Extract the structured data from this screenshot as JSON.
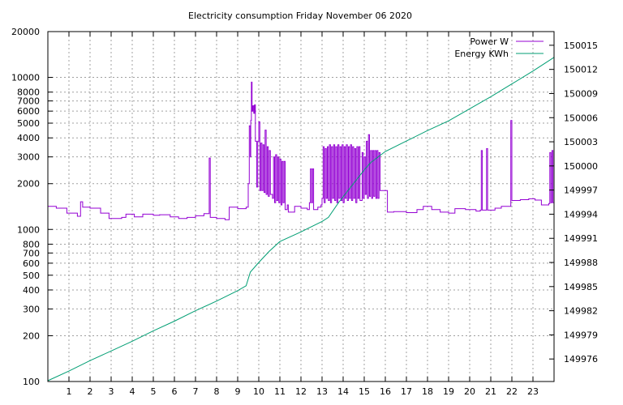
{
  "chart_data": {
    "type": "line",
    "title": "Electricity consumption Friday November 06 2020",
    "x_axis": {
      "range": [
        0,
        24
      ],
      "ticks": [
        1,
        2,
        3,
        4,
        5,
        6,
        7,
        8,
        9,
        10,
        11,
        12,
        13,
        14,
        15,
        16,
        17,
        18,
        19,
        20,
        21,
        22,
        23
      ],
      "grid": true
    },
    "y_axis_left": {
      "scale": "log",
      "range": [
        100,
        20000
      ],
      "ticks": [
        100,
        200,
        300,
        400,
        500,
        600,
        700,
        800,
        1000,
        2000,
        3000,
        4000,
        5000,
        6000,
        7000,
        8000,
        10000,
        20000
      ],
      "grid": true
    },
    "y_axis_right": {
      "scale": "linear",
      "range": [
        149973.2,
        150016.7
      ],
      "ticks": [
        149976,
        149979,
        149982,
        149985,
        149988,
        149991,
        149994,
        149997,
        150000,
        150003,
        150006,
        150009,
        150012,
        150015
      ]
    },
    "legend": {
      "position": "top-right"
    },
    "series": [
      {
        "name": "Power W",
        "axis": "left",
        "color": "#9400d3",
        "step": true,
        "points": [
          [
            0,
            1420
          ],
          [
            0.4,
            1380
          ],
          [
            0.9,
            1280
          ],
          [
            1.4,
            1220
          ],
          [
            1.55,
            1520
          ],
          [
            1.65,
            1400
          ],
          [
            2,
            1380
          ],
          [
            2.5,
            1280
          ],
          [
            2.9,
            1180
          ],
          [
            3.5,
            1200
          ],
          [
            3.7,
            1260
          ],
          [
            4.1,
            1210
          ],
          [
            4.5,
            1260
          ],
          [
            5,
            1240
          ],
          [
            5.3,
            1250
          ],
          [
            5.8,
            1210
          ],
          [
            6.2,
            1180
          ],
          [
            6.6,
            1200
          ],
          [
            7,
            1230
          ],
          [
            7.4,
            1270
          ],
          [
            7.65,
            2950
          ],
          [
            7.7,
            1200
          ],
          [
            8.0,
            1180
          ],
          [
            8.4,
            1160
          ],
          [
            8.6,
            1400
          ],
          [
            9.0,
            1370
          ],
          [
            9.4,
            1400
          ],
          [
            9.5,
            2000
          ],
          [
            9.55,
            4800
          ],
          [
            9.6,
            3000
          ],
          [
            9.62,
            5200
          ],
          [
            9.65,
            9300
          ],
          [
            9.68,
            6000
          ],
          [
            9.72,
            6500
          ],
          [
            9.76,
            5800
          ],
          [
            9.8,
            6600
          ],
          [
            9.84,
            3800
          ],
          [
            9.9,
            1900
          ],
          [
            9.95,
            3800
          ],
          [
            10.0,
            5100
          ],
          [
            10.05,
            1800
          ],
          [
            10.1,
            3700
          ],
          [
            10.15,
            1800
          ],
          [
            10.2,
            3600
          ],
          [
            10.25,
            1750
          ],
          [
            10.3,
            4500
          ],
          [
            10.35,
            1700
          ],
          [
            10.4,
            3500
          ],
          [
            10.45,
            1650
          ],
          [
            10.5,
            3300
          ],
          [
            10.55,
            1700
          ],
          [
            10.65,
            1600
          ],
          [
            10.7,
            3000
          ],
          [
            10.75,
            1500
          ],
          [
            10.8,
            3100
          ],
          [
            10.85,
            1550
          ],
          [
            10.9,
            3000
          ],
          [
            10.95,
            1500
          ],
          [
            11.0,
            2900
          ],
          [
            11.05,
            1450
          ],
          [
            11.1,
            2800
          ],
          [
            11.15,
            1500
          ],
          [
            11.2,
            2800
          ],
          [
            11.25,
            1350
          ],
          [
            11.35,
            1450
          ],
          [
            11.4,
            1300
          ],
          [
            11.7,
            1420
          ],
          [
            12.0,
            1380
          ],
          [
            12.3,
            1350
          ],
          [
            12.4,
            1500
          ],
          [
            12.45,
            2500
          ],
          [
            12.5,
            1500
          ],
          [
            12.55,
            2500
          ],
          [
            12.6,
            1350
          ],
          [
            12.8,
            1400
          ],
          [
            12.95,
            1450
          ],
          [
            13.0,
            1600
          ],
          [
            13.05,
            3500
          ],
          [
            13.1,
            1500
          ],
          [
            13.15,
            3400
          ],
          [
            13.2,
            1600
          ],
          [
            13.25,
            3500
          ],
          [
            13.3,
            1550
          ],
          [
            13.35,
            3600
          ],
          [
            13.4,
            1500
          ],
          [
            13.45,
            3500
          ],
          [
            13.5,
            1600
          ],
          [
            13.55,
            3600
          ],
          [
            13.6,
            1550
          ],
          [
            13.65,
            3500
          ],
          [
            13.7,
            1500
          ],
          [
            13.75,
            3600
          ],
          [
            13.8,
            1600
          ],
          [
            13.85,
            3500
          ],
          [
            13.9,
            1550
          ],
          [
            13.95,
            3600
          ],
          [
            14.0,
            1500
          ],
          [
            14.05,
            3500
          ],
          [
            14.1,
            1600
          ],
          [
            14.15,
            3600
          ],
          [
            14.2,
            1550
          ],
          [
            14.25,
            3500
          ],
          [
            14.3,
            1600
          ],
          [
            14.35,
            3600
          ],
          [
            14.4,
            1550
          ],
          [
            14.45,
            3500
          ],
          [
            14.5,
            1600
          ],
          [
            14.55,
            3400
          ],
          [
            14.6,
            1500
          ],
          [
            14.65,
            3500
          ],
          [
            14.7,
            1600
          ],
          [
            14.75,
            3500
          ],
          [
            14.8,
            1550
          ],
          [
            14.9,
            3200
          ],
          [
            14.95,
            1600
          ],
          [
            15.0,
            3000
          ],
          [
            15.05,
            1700
          ],
          [
            15.1,
            3800
          ],
          [
            15.15,
            1600
          ],
          [
            15.2,
            4200
          ],
          [
            15.25,
            1650
          ],
          [
            15.3,
            3300
          ],
          [
            15.35,
            1600
          ],
          [
            15.4,
            3300
          ],
          [
            15.45,
            1650
          ],
          [
            15.5,
            3300
          ],
          [
            15.55,
            1600
          ],
          [
            15.6,
            3300
          ],
          [
            15.65,
            1600
          ],
          [
            15.7,
            3200
          ],
          [
            15.75,
            1800
          ],
          [
            16.1,
            1300
          ],
          [
            16.4,
            1310
          ],
          [
            17.0,
            1290
          ],
          [
            17.5,
            1350
          ],
          [
            17.8,
            1420
          ],
          [
            18.2,
            1350
          ],
          [
            18.6,
            1300
          ],
          [
            19.0,
            1280
          ],
          [
            19.3,
            1370
          ],
          [
            19.8,
            1350
          ],
          [
            20.3,
            1320
          ],
          [
            20.5,
            1340
          ],
          [
            20.55,
            3300
          ],
          [
            20.6,
            1340
          ],
          [
            20.75,
            1340
          ],
          [
            20.8,
            3400
          ],
          [
            20.85,
            1340
          ],
          [
            21.2,
            1380
          ],
          [
            21.5,
            1420
          ],
          [
            21.9,
            1420
          ],
          [
            21.95,
            5200
          ],
          [
            22.0,
            1550
          ],
          [
            22.4,
            1570
          ],
          [
            22.8,
            1590
          ],
          [
            23.1,
            1560
          ],
          [
            23.4,
            1450
          ],
          [
            23.75,
            1480
          ],
          [
            23.8,
            3200
          ],
          [
            23.85,
            1500
          ],
          [
            23.9,
            3300
          ],
          [
            23.95,
            1500
          ],
          [
            24.0,
            3200
          ]
        ]
      },
      {
        "name": "Energy KWh",
        "axis": "right",
        "color": "#009e73",
        "step": false,
        "points": [
          [
            0,
            149973.3
          ],
          [
            1,
            149974.5
          ],
          [
            2,
            149975.8
          ],
          [
            3,
            149977.0
          ],
          [
            4,
            149978.2
          ],
          [
            5,
            149979.5
          ],
          [
            6,
            149980.7
          ],
          [
            7,
            149982.0
          ],
          [
            8,
            149983.2
          ],
          [
            9,
            149984.5
          ],
          [
            9.4,
            149985.1
          ],
          [
            9.6,
            149986.8
          ],
          [
            10,
            149988.0
          ],
          [
            10.5,
            149989.4
          ],
          [
            11,
            149990.6
          ],
          [
            12,
            149991.8
          ],
          [
            13,
            149993.1
          ],
          [
            13.3,
            149993.6
          ],
          [
            13.8,
            149995.5
          ],
          [
            14.4,
            149997.5
          ],
          [
            15,
            149999.5
          ],
          [
            15.3,
            150000.4
          ],
          [
            16,
            150001.8
          ],
          [
            17,
            150003.1
          ],
          [
            18,
            150004.4
          ],
          [
            19,
            150005.6
          ],
          [
            20,
            150007.1
          ],
          [
            21,
            150008.6
          ],
          [
            22,
            150010.2
          ],
          [
            23,
            150011.8
          ],
          [
            24,
            150013.5
          ]
        ]
      }
    ]
  }
}
